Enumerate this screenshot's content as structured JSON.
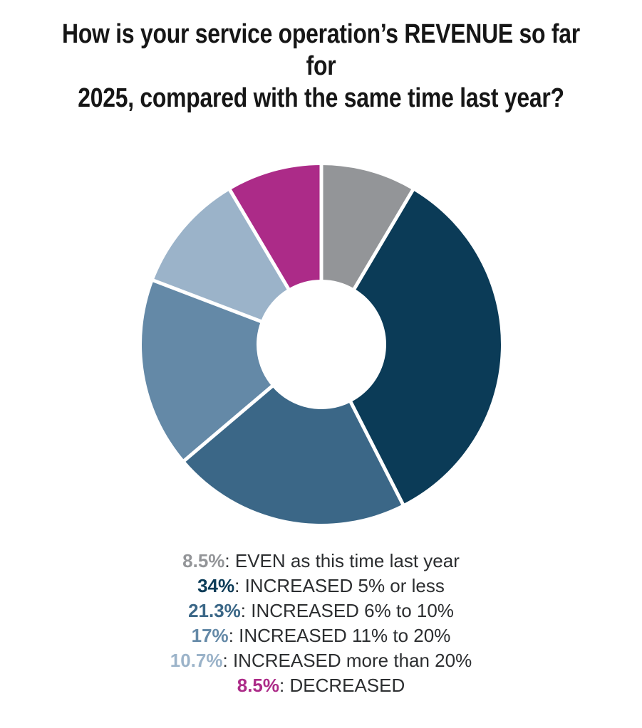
{
  "chart_data": {
    "type": "pie",
    "subtype": "donut",
    "title": "How is your service operation’s REVENUE so far for\n2025, compared with the same time last year?",
    "start_angle_deg": 0,
    "direction": "clockwise",
    "inner_radius_ratio": 0.36,
    "legend_position": "bottom",
    "divider_color": "#ffffff",
    "items": [
      {
        "value": 8.5,
        "pct_label": "8.5%",
        "label": ": EVEN as this time last year",
        "color": "#939598"
      },
      {
        "value": 34,
        "pct_label": "34%",
        "label": ": INCREASED 5% or less",
        "color": "#0b3b57"
      },
      {
        "value": 21.3,
        "pct_label": "21.3%",
        "label": ": INCREASED 6% to 10%",
        "color": "#3b6787"
      },
      {
        "value": 17,
        "pct_label": "17%",
        "label": ": INCREASED 11% to 20%",
        "color": "#6489a7"
      },
      {
        "value": 10.7,
        "pct_label": "10.7%",
        "label": ": INCREASED more than 20%",
        "color": "#9bb3c9"
      },
      {
        "value": 8.5,
        "pct_label": "8.5%",
        "label": ": DECREASED",
        "color": "#ac2b88"
      }
    ]
  }
}
